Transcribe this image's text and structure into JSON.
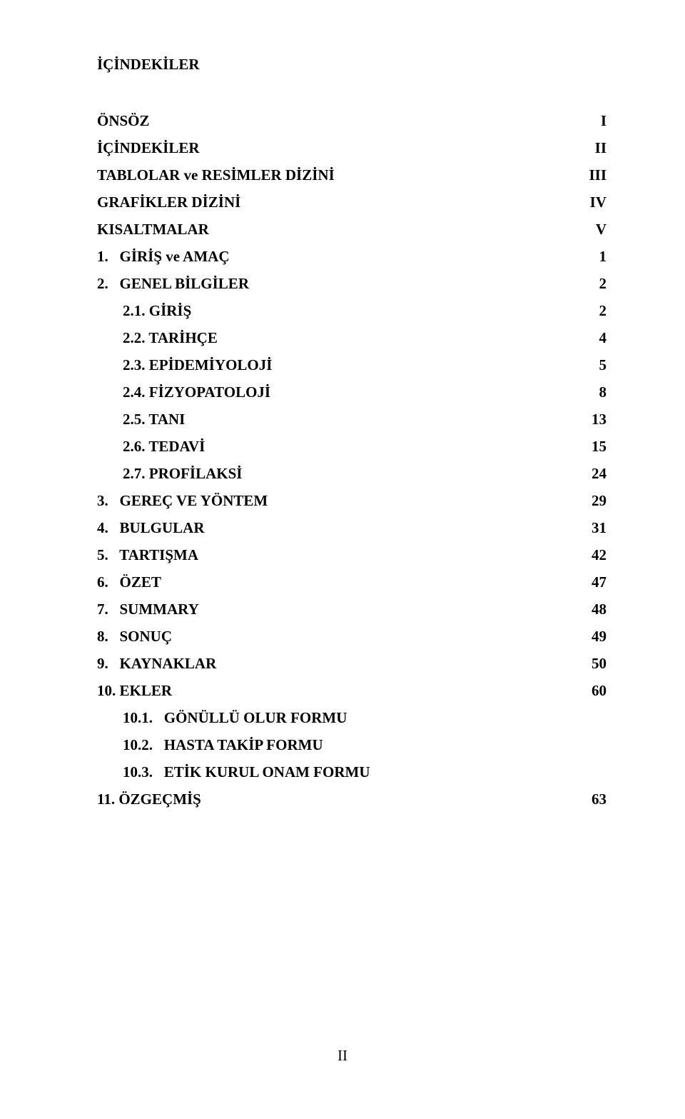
{
  "title": "İÇİNDEKİLER",
  "rows": [
    {
      "label": "ÖNSÖZ",
      "page": "I",
      "bold": true,
      "indent": 0
    },
    {
      "label": "İÇİNDEKİLER",
      "page": "II",
      "bold": true,
      "indent": 0
    },
    {
      "label": "TABLOLAR ve RESİMLER DİZİNİ",
      "page": "III",
      "bold": true,
      "indent": 0
    },
    {
      "label": "GRAFİKLER DİZİNİ",
      "page": "IV",
      "bold": true,
      "indent": 0
    },
    {
      "label": "KISALTMALAR",
      "page": "V",
      "bold": true,
      "indent": 0
    },
    {
      "label": "1.   GİRİŞ ve AMAÇ",
      "page": "1",
      "bold": true,
      "indent": 0
    },
    {
      "label": "2.   GENEL BİLGİLER",
      "page": "2",
      "bold": true,
      "indent": 0
    },
    {
      "label": "2.1. GİRİŞ",
      "page": "2",
      "bold": true,
      "indent": 2
    },
    {
      "label": "2.2. TARİHÇE",
      "page": "4",
      "bold": true,
      "indent": 2
    },
    {
      "label": "2.3. EPİDEMİYOLOJİ",
      "page": "5",
      "bold": true,
      "indent": 2
    },
    {
      "label": "2.4. FİZYOPATOLOJİ",
      "page": "8",
      "bold": true,
      "indent": 2
    },
    {
      "label": "2.5. TANI",
      "page": "13",
      "bold": true,
      "indent": 2
    },
    {
      "label": "2.6. TEDAVİ",
      "page": "15",
      "bold": true,
      "indent": 2
    },
    {
      "label": "2.7. PROFİLAKSİ",
      "page": "24",
      "bold": true,
      "indent": 2
    },
    {
      "label": "3.   GEREÇ VE YÖNTEM",
      "page": "29",
      "bold": true,
      "indent": 0
    },
    {
      "label": "4.   BULGULAR",
      "page": "31",
      "bold": true,
      "indent": 0
    },
    {
      "label": "5.   TARTIŞMA",
      "page": "42",
      "bold": true,
      "indent": 0
    },
    {
      "label": "6.   ÖZET",
      "page": "47",
      "bold": true,
      "indent": 0
    },
    {
      "label": "7.   SUMMARY",
      "page": "48",
      "bold": true,
      "indent": 0
    },
    {
      "label": "8.   SONUÇ",
      "page": "49",
      "bold": true,
      "indent": 0
    },
    {
      "label": "9.   KAYNAKLAR",
      "page": "50",
      "bold": true,
      "indent": 0
    },
    {
      "label": "10. EKLER",
      "page": "60",
      "bold": true,
      "indent": 0
    },
    {
      "label": "10.1.   GÖNÜLLÜ OLUR FORMU",
      "page": "",
      "bold": true,
      "indent": 2
    },
    {
      "label": "10.2.   HASTA TAKİP FORMU",
      "page": "",
      "bold": true,
      "indent": 2
    },
    {
      "label": "10.3.   ETİK KURUL ONAM FORMU",
      "page": "",
      "bold": true,
      "indent": 2
    },
    {
      "label": "11. ÖZGEÇMİŞ",
      "page": "63",
      "bold": true,
      "indent": 0
    }
  ],
  "footer": "II"
}
